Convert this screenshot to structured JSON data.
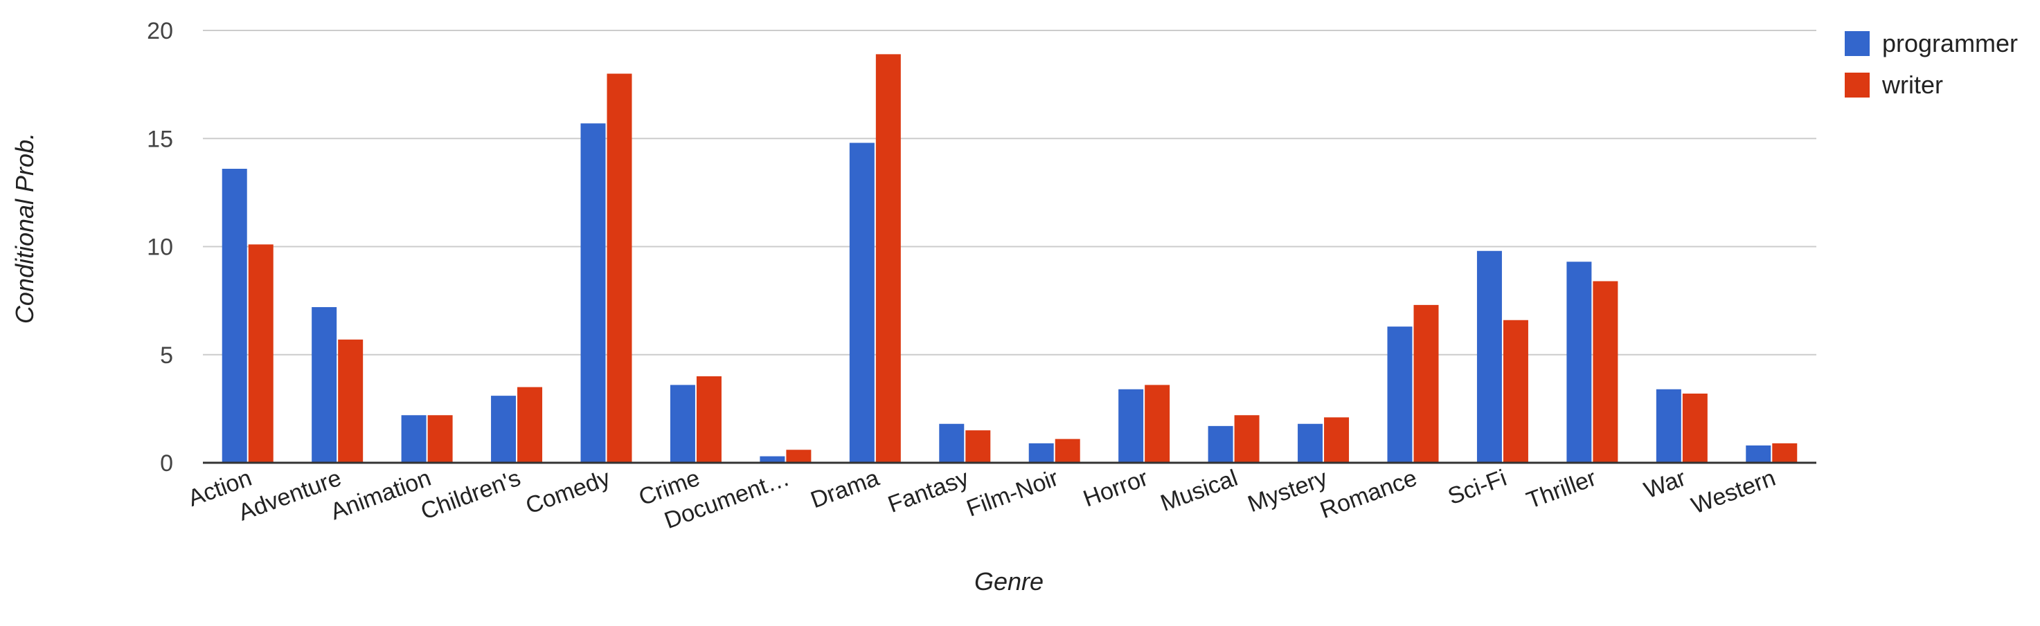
{
  "chart_data": {
    "type": "bar",
    "title": "",
    "xlabel": "Genre",
    "ylabel": "Conditional Prob.",
    "ylim": [
      0,
      20
    ],
    "yticks": [
      0,
      5,
      10,
      15,
      20
    ],
    "grid": true,
    "legend_position": "top-right",
    "categories": [
      "Action",
      "Adventure",
      "Animation",
      "Children's",
      "Comedy",
      "Crime",
      "Document…",
      "Drama",
      "Fantasy",
      "Film-Noir",
      "Horror",
      "Musical",
      "Mystery",
      "Romance",
      "Sci-Fi",
      "Thriller",
      "War",
      "Western"
    ],
    "series": [
      {
        "name": "programmer",
        "color": "#3366cc",
        "values": [
          13.6,
          7.2,
          2.2,
          3.1,
          15.7,
          3.6,
          0.3,
          14.8,
          1.8,
          0.9,
          3.4,
          1.7,
          1.8,
          6.3,
          9.8,
          9.3,
          3.4,
          0.8
        ]
      },
      {
        "name": "writer",
        "color": "#dc3912",
        "values": [
          10.1,
          5.7,
          2.2,
          3.5,
          18.0,
          4.0,
          0.6,
          18.9,
          1.5,
          1.1,
          3.6,
          2.2,
          2.1,
          7.3,
          6.6,
          8.4,
          3.2,
          0.9
        ]
      }
    ]
  }
}
